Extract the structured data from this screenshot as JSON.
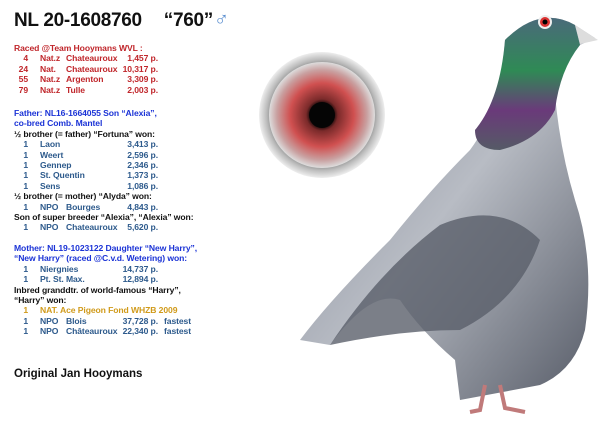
{
  "title": {
    "ring": "NL 20-1608760",
    "nickname": "“760”",
    "sex_symbol": "♂"
  },
  "raced": {
    "heading": "Raced @Team Hooymans WVL :",
    "rows": [
      [
        "4",
        "Nat.z",
        "Chateauroux",
        "1,457 p."
      ],
      [
        "24",
        "Nat.",
        "Chateauroux",
        "10,317 p."
      ],
      [
        "55",
        "Nat.z",
        "Argenton",
        "3,309 p."
      ],
      [
        "79",
        "Nat.z",
        "Tulle",
        "2,003 p."
      ]
    ]
  },
  "father": {
    "line1": "Father: NL16-1664055 Son “Alexia”,",
    "line2": "co-bred Comb. Mantel",
    "half_brother_heading": "½ brother (= father) “Fortuna” won:",
    "half_brother_rows": [
      [
        "1",
        "Laon",
        "3,413 p."
      ],
      [
        "1",
        "Weert",
        "2,596 p."
      ],
      [
        "1",
        "Gennep",
        "2,346 p."
      ],
      [
        "1",
        "St. Quentin",
        "1,373 p."
      ],
      [
        "1",
        "Sens",
        "1,086 p."
      ]
    ],
    "half_brother2_heading": "½ brother (= mother) “Alyda” won:",
    "half_brother2_rows": [
      [
        "1",
        "NPO",
        "Bourges",
        "4,843 p."
      ]
    ],
    "alexia_heading": "Son of super breeder “Alexia”, “Alexia” won:",
    "alexia_rows": [
      [
        "1",
        "NPO",
        "Chateauroux",
        "5,620 p."
      ]
    ]
  },
  "mother": {
    "line1": "Mother: NL19-1023122 Daughter “New Harry”,",
    "line2": "“New Harry” (raced @C.v.d. Wetering) won:",
    "rows": [
      [
        "1",
        "Niergnies",
        "14,737 p."
      ],
      [
        "1",
        "Pt. St. Max.",
        "12,894 p."
      ]
    ],
    "harry_line1": "Inbred granddtr. of world-famous “Harry”,",
    "harry_line2": "“Harry” won:",
    "ace": [
      "1",
      "NAT. Ace Pigeon Fond WHZB 2009"
    ],
    "harry_rows": [
      [
        "1",
        "NPO",
        "Blois",
        "37,728 p.",
        "fastest"
      ],
      [
        "1",
        "NPO",
        "Châteauroux",
        "22,340 p.",
        "fastest"
      ]
    ]
  },
  "footer": "Original Jan Hooymans",
  "colors": {
    "red": "#c0262b",
    "blue": "#1b33d6",
    "steel": "#2d5a8c",
    "gold": "#d09a1a"
  }
}
